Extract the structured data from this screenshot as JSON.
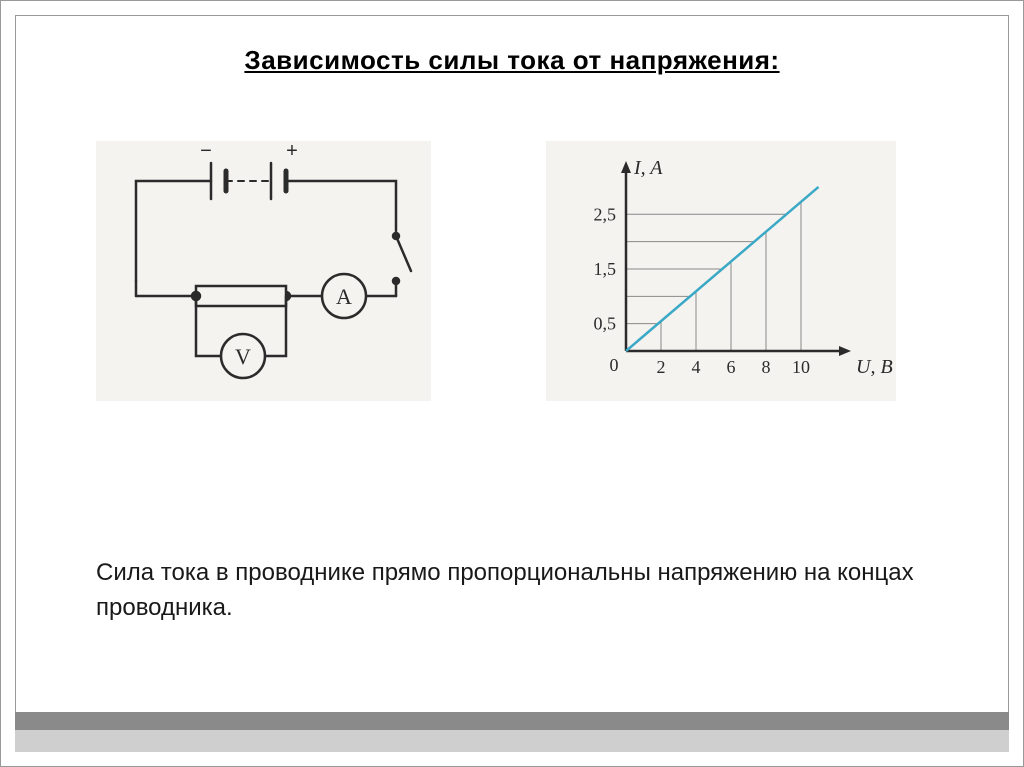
{
  "title": "Зависимость силы тока от напряжения:",
  "body_text": "Сила тока в проводнике прямо пропорциональны напряжению на концах проводника.",
  "circuit": {
    "background": "#f5f3f0",
    "line_color": "#2b2b2b",
    "line_width": 2.5,
    "polarity_minus": "−",
    "polarity_plus": "+",
    "ammeter_label": "A",
    "voltmeter_label": "V"
  },
  "chart": {
    "type": "line",
    "background": "#f5f3f0",
    "axis_color": "#2b2b2b",
    "axis_width": 2.5,
    "grid_color": "#888888",
    "grid_width": 1,
    "line_color": "#3ba9c6",
    "line_width": 2.5,
    "x_label": "U, В",
    "y_label": "I, A",
    "origin_label": "0",
    "x_ticks": [
      2,
      4,
      6,
      8,
      10
    ],
    "y_ticks": [
      0.5,
      1.5,
      2.5
    ],
    "y_ticks_display": [
      "0,5",
      "1,5",
      "2,5"
    ],
    "line_points": [
      [
        0,
        0
      ],
      [
        11,
        3.0
      ]
    ],
    "x_range": [
      0,
      12
    ],
    "y_range": [
      0,
      3.2
    ],
    "tick_fontsize": 18,
    "label_fontsize": 20,
    "font_style": "italic"
  },
  "colors": {
    "frame_border": "#999999",
    "footer_dark": "#8a8a8a",
    "footer_light": "#cfcfcf"
  }
}
